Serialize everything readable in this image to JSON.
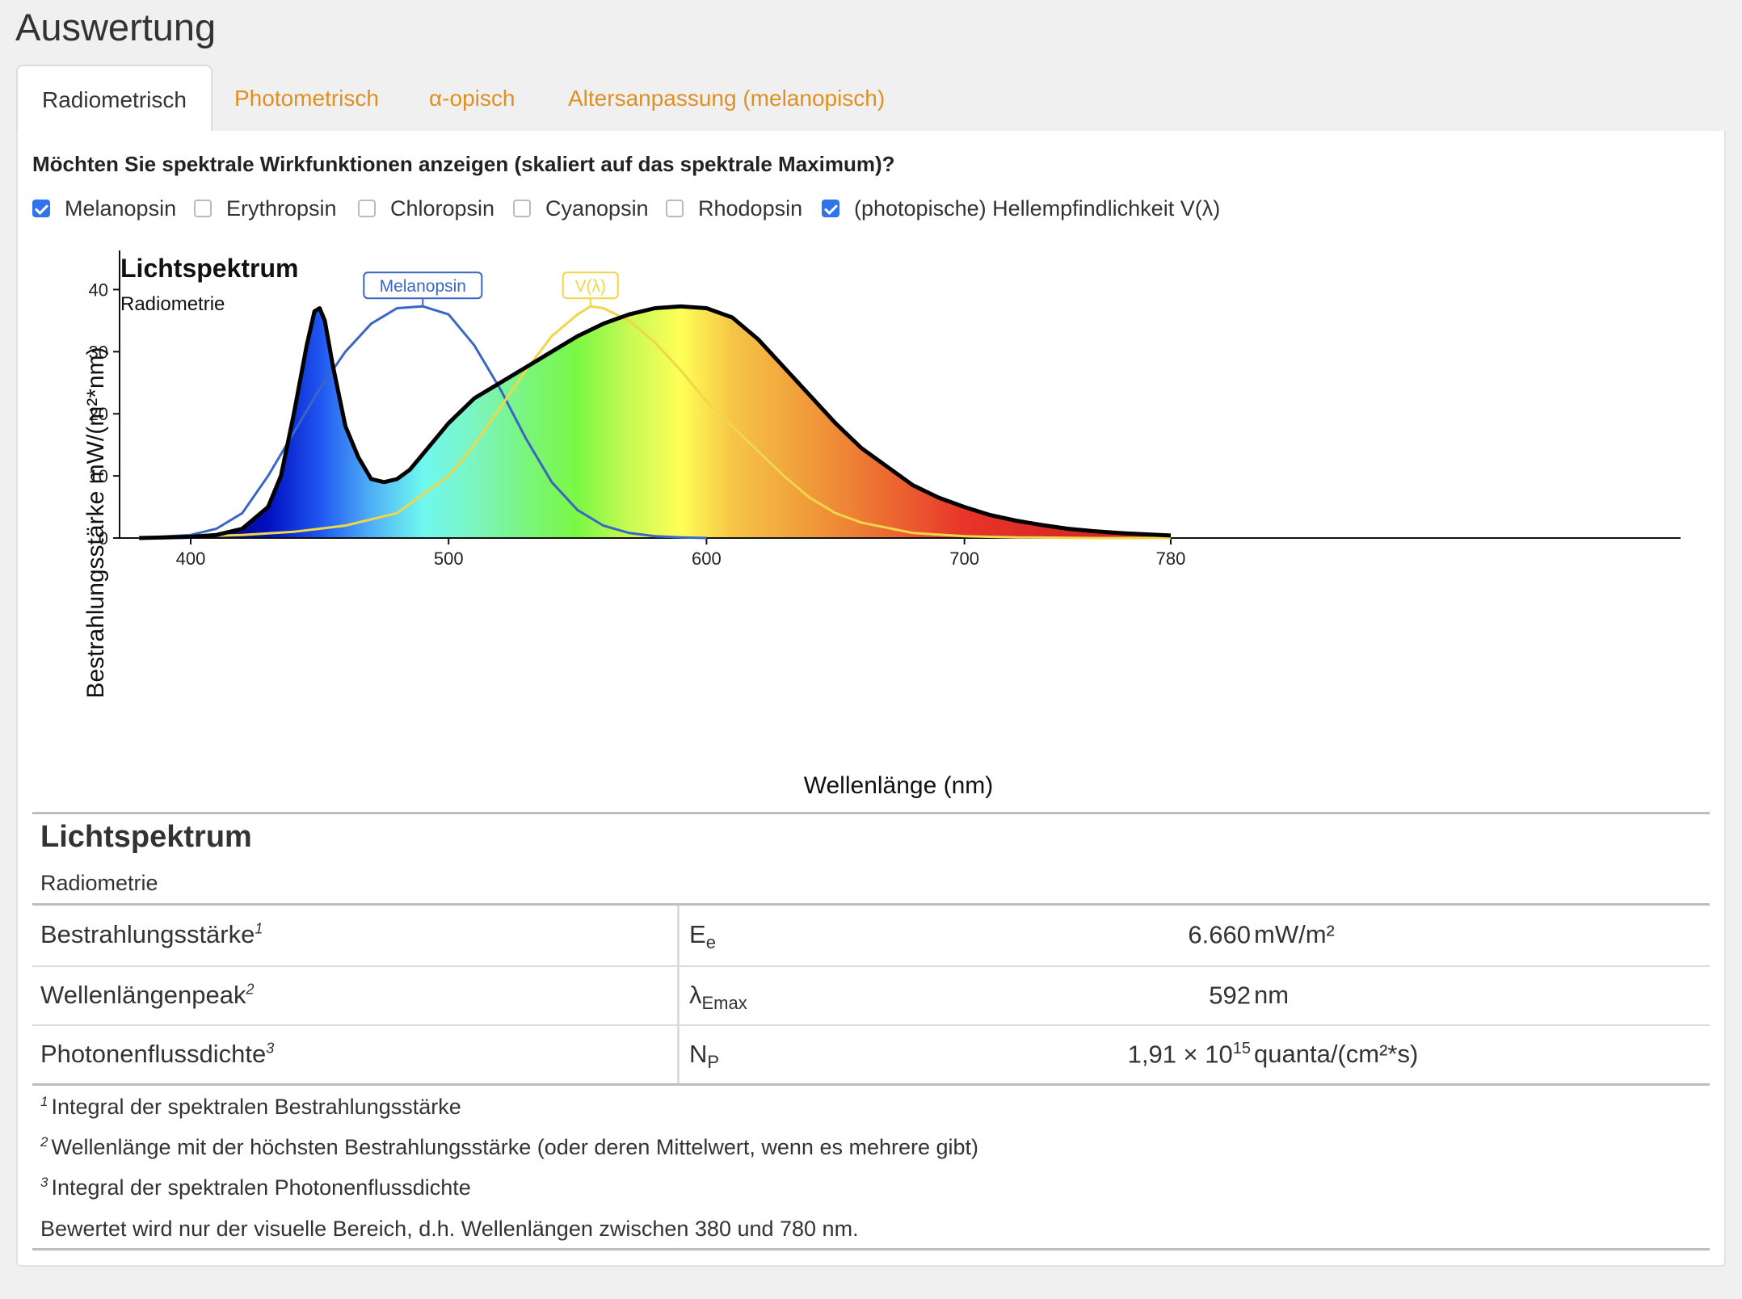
{
  "page": {
    "title": "Auswertung"
  },
  "tabs": [
    {
      "label": "Radiometrisch",
      "active": true
    },
    {
      "label": "Photometrisch",
      "active": false
    },
    {
      "label": "α-opisch",
      "active": false
    },
    {
      "label": "Altersanpassung (melanopisch)",
      "active": false
    }
  ],
  "question": "Möchten Sie spektrale Wirkfunktionen anzeigen (skaliert auf das spektrale Maximum)?",
  "checkboxes": [
    {
      "label": "Melanopsin",
      "checked": true
    },
    {
      "label": "Erythropsin",
      "checked": false
    },
    {
      "label": "Chloropsin",
      "checked": false
    },
    {
      "label": "Cyanopsin",
      "checked": false
    },
    {
      "label": "Rhodopsin",
      "checked": false
    },
    {
      "label": "(photopische) Hellempfindlichkeit V(λ)",
      "checked": true
    }
  ],
  "chart_data": {
    "type": "area",
    "title": "Lichtspektrum",
    "subtitle": "Radiometrie",
    "xlabel": "Wellenlänge (nm)",
    "ylabel": "Bestrahlungsstärke  mW/(m²*nm)",
    "xlim": [
      380,
      780
    ],
    "ylim": [
      0,
      45
    ],
    "x_ticks": [
      400,
      500,
      600,
      700,
      780
    ],
    "y_ticks": [
      0,
      10,
      20,
      30,
      40
    ],
    "grid": false,
    "series": [
      {
        "name": "",
        "color": "#000000",
        "x": [
          380,
          390,
          400,
          410,
          420,
          430,
          435,
          440,
          445,
          448,
          450,
          452,
          455,
          460,
          465,
          470,
          475,
          480,
          485,
          490,
          500,
          510,
          520,
          530,
          540,
          550,
          560,
          570,
          580,
          590,
          600,
          610,
          620,
          630,
          640,
          650,
          660,
          670,
          680,
          690,
          700,
          710,
          720,
          730,
          740,
          750,
          760,
          770,
          780
        ],
        "y": [
          0,
          0.1,
          0.2,
          0.5,
          1.5,
          5,
          10,
          20,
          31,
          36.5,
          37,
          35,
          28,
          18,
          13,
          9.5,
          9,
          9.5,
          11,
          13.5,
          18.5,
          22.5,
          25,
          27.5,
          30,
          32.5,
          34.5,
          36,
          37,
          37.3,
          37,
          35.5,
          32,
          27.5,
          23,
          18.5,
          14.5,
          11.5,
          8.5,
          6.5,
          5,
          3.7,
          2.8,
          2.1,
          1.5,
          1.1,
          0.8,
          0.6,
          0.4
        ]
      },
      {
        "name": "Melanopsin",
        "color": "#3a66c4",
        "x": [
          380,
          400,
          410,
          420,
          430,
          440,
          450,
          460,
          470,
          480,
          490,
          500,
          510,
          520,
          530,
          540,
          550,
          560,
          570,
          580,
          590,
          600
        ],
        "y": [
          0,
          0.5,
          1.5,
          4,
          10,
          17,
          24,
          30,
          34.5,
          37,
          37.3,
          36,
          31,
          24,
          16,
          9,
          4.5,
          2,
          0.8,
          0.3,
          0.1,
          0
        ]
      },
      {
        "name": "V(λ)",
        "color": "#f0d64a",
        "x": [
          380,
          420,
          440,
          460,
          480,
          500,
          510,
          520,
          530,
          540,
          550,
          555,
          560,
          570,
          580,
          590,
          600,
          610,
          620,
          630,
          640,
          650,
          660,
          680,
          700,
          720,
          750,
          780
        ],
        "y": [
          0,
          0.5,
          1,
          2,
          4,
          10,
          15,
          21,
          27,
          32.5,
          36,
          37.3,
          37,
          35,
          31.5,
          27,
          22,
          18,
          14,
          10,
          6.5,
          4,
          2.5,
          0.8,
          0.3,
          0.1,
          0,
          0
        ]
      }
    ],
    "annotations": [
      "Melanopsin",
      "V(λ)"
    ]
  },
  "results": {
    "title": "Lichtspektrum",
    "subtitle": "Radiometrie",
    "rows": [
      {
        "label": "Bestrahlungsstärke",
        "fn": "1",
        "symbol": "E",
        "symbol_sub": "e",
        "value": "6.660",
        "value_sup": "",
        "unit": "mW/m²"
      },
      {
        "label": "Wellenlängenpeak",
        "fn": "2",
        "symbol": "λ",
        "symbol_sub": "Emax",
        "value": "592",
        "value_sup": "",
        "unit": "nm"
      },
      {
        "label": "Photonenflussdichte",
        "fn": "3",
        "symbol": "N",
        "symbol_sub": "P",
        "value": "1,91 × 10",
        "value_sup": "15",
        "unit": "quanta/(cm²*s)"
      }
    ],
    "footnotes": [
      {
        "mark": "1",
        "text": "Integral der spektralen Bestrahlungsstärke"
      },
      {
        "mark": "2",
        "text": "Wellenlänge mit der höchsten Bestrahlungsstärke (oder deren Mittelwert, wenn es mehrere gibt)"
      },
      {
        "mark": "3",
        "text": "Integral der spektralen Photonenflussdichte"
      }
    ],
    "note": "Bewertet wird nur der visuelle Bereich, d.h. Wellenlängen zwischen 380 und 780 nm."
  }
}
